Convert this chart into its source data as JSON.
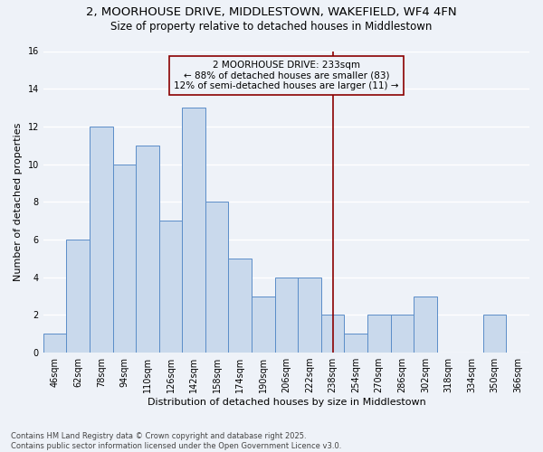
{
  "title_line1": "2, MOORHOUSE DRIVE, MIDDLESTOWN, WAKEFIELD, WF4 4FN",
  "title_line2": "Size of property relative to detached houses in Middlestown",
  "xlabel": "Distribution of detached houses by size in Middlestown",
  "ylabel": "Number of detached properties",
  "categories": [
    "46sqm",
    "62sqm",
    "78sqm",
    "94sqm",
    "110sqm",
    "126sqm",
    "142sqm",
    "158sqm",
    "174sqm",
    "190sqm",
    "206sqm",
    "222sqm",
    "238sqm",
    "254sqm",
    "270sqm",
    "286sqm",
    "302sqm",
    "318sqm",
    "334sqm",
    "350sqm",
    "366sqm"
  ],
  "values": [
    1,
    6,
    12,
    10,
    11,
    7,
    13,
    8,
    5,
    3,
    4,
    4,
    2,
    1,
    2,
    2,
    3,
    0,
    0,
    2,
    0
  ],
  "bar_color": "#c9d9ec",
  "bar_edge_color": "#5b8dc8",
  "vline_index": 12,
  "vline_color": "#8b0000",
  "annotation_text": "2 MOORHOUSE DRIVE: 233sqm\n← 88% of detached houses are smaller (83)\n12% of semi-detached houses are larger (11) →",
  "annotation_text_color": "#000000",
  "ylim": [
    0,
    16
  ],
  "yticks": [
    0,
    2,
    4,
    6,
    8,
    10,
    12,
    14,
    16
  ],
  "footer": "Contains HM Land Registry data © Crown copyright and database right 2025.\nContains public sector information licensed under the Open Government Licence v3.0.",
  "bg_color": "#eef2f8",
  "grid_color": "#ffffff",
  "title_fontsize": 9.5,
  "subtitle_fontsize": 8.5,
  "axis_label_fontsize": 8,
  "tick_fontsize": 7,
  "footer_fontsize": 6,
  "annotation_fontsize": 7.5
}
